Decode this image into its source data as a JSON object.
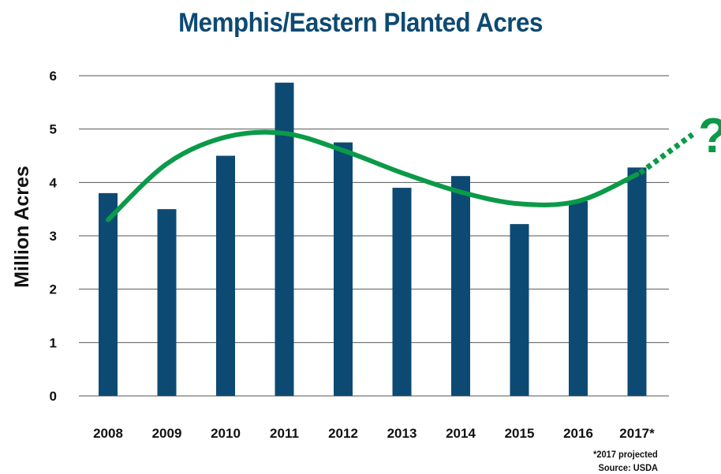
{
  "chart_data": {
    "type": "bar",
    "title": "Memphis/Eastern Planted Acres",
    "ylabel": "Million Acres",
    "xlabel": "",
    "categories": [
      "2008",
      "2009",
      "2010",
      "2011",
      "2012",
      "2013",
      "2014",
      "2015",
      "2016",
      "2017*"
    ],
    "values": [
      3.8,
      3.5,
      4.5,
      5.87,
      4.75,
      3.9,
      4.12,
      3.22,
      3.65,
      4.28
    ],
    "ylim": [
      0,
      6
    ],
    "yticks": [
      "0",
      "1",
      "2",
      "3",
      "4",
      "5",
      "6"
    ],
    "grid": true,
    "trend": {
      "type": "smooth-curve",
      "values": [
        3.3,
        4.35,
        4.85,
        4.92,
        4.6,
        4.18,
        3.82,
        3.6,
        3.65,
        4.15
      ],
      "projected_end": 4.9,
      "marker": "?"
    },
    "annotations": [
      "*2017 projected",
      "Source: USDA"
    ]
  },
  "colors": {
    "bar": "#0d4a73",
    "title": "#0d4a73",
    "trend": "#0a9a48",
    "grid": "#555555",
    "text": "#111111"
  }
}
